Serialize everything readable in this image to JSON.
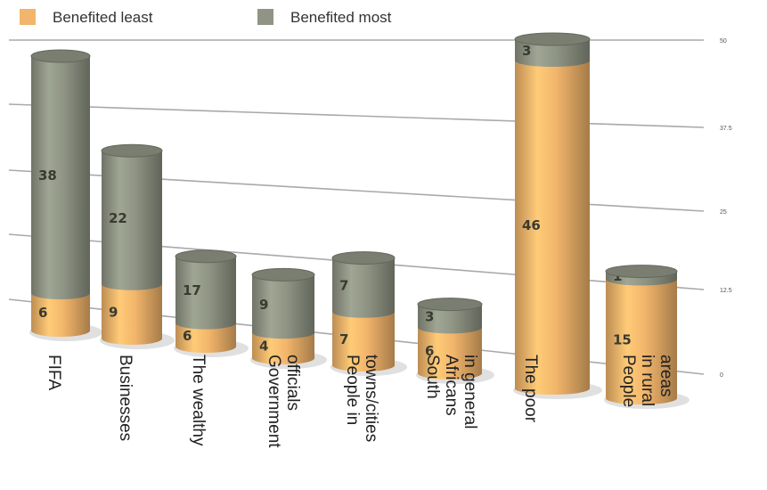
{
  "chart_data": {
    "type": "bar",
    "stacked": true,
    "style": "3d-cylinder",
    "categories": [
      [
        "FIFA"
      ],
      [
        "Businesses"
      ],
      [
        "The wealthy"
      ],
      [
        "Government",
        "officials"
      ],
      [
        "People in",
        "towns/cities"
      ],
      [
        "South",
        "Africans",
        "in general"
      ],
      [
        "The poor"
      ],
      [
        "People",
        "in rural",
        "areas"
      ]
    ],
    "series": [
      {
        "name": "Benefited least",
        "color": "#f2b56b",
        "values": [
          6,
          9,
          6,
          4,
          7,
          6,
          46,
          15
        ]
      },
      {
        "name": "Benefited most",
        "color": "#8f9484",
        "values": [
          38,
          22,
          17,
          9,
          7,
          3,
          3,
          1
        ]
      }
    ],
    "yticks": [
      "50",
      "37.5",
      "25",
      "12.5",
      "0"
    ],
    "ylim": [
      0,
      50
    ],
    "grid": true,
    "legend": "top-left",
    "title": "",
    "xlabel": "",
    "ylabel": ""
  }
}
